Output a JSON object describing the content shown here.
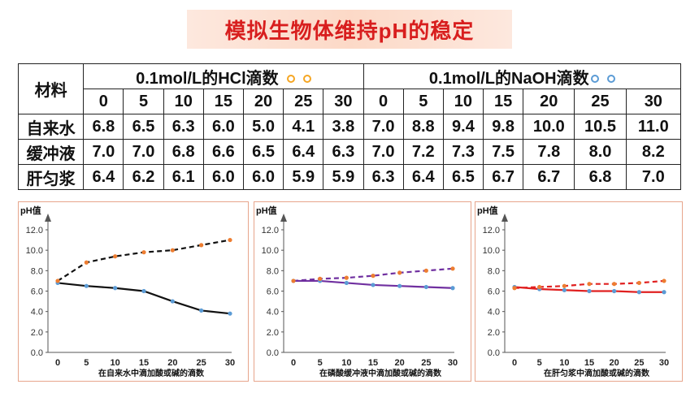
{
  "title": "模拟生物体维持pH的稳定",
  "table": {
    "material_header": "材料",
    "hcl_header": "0.1mol/L的HCl滴数",
    "naoh_header": "0.1mol/L的NaOH滴数",
    "drops": [
      "0",
      "5",
      "10",
      "15",
      "20",
      "25",
      "30"
    ],
    "rows": [
      {
        "name": "自来水",
        "hcl": [
          "6.8",
          "6.5",
          "6.3",
          "6.0",
          "5.0",
          "4.1",
          "3.8"
        ],
        "naoh": [
          "7.0",
          "8.8",
          "9.4",
          "9.8",
          "10.0",
          "10.5",
          "11.0"
        ]
      },
      {
        "name": "缓冲液",
        "hcl": [
          "7.0",
          "7.0",
          "6.8",
          "6.6",
          "6.5",
          "6.4",
          "6.3"
        ],
        "naoh": [
          "7.0",
          "7.2",
          "7.3",
          "7.5",
          "7.8",
          "8.0",
          "8.2"
        ]
      },
      {
        "name": "肝匀浆",
        "hcl": [
          "6.4",
          "6.2",
          "6.1",
          "6.0",
          "6.0",
          "5.9",
          "5.9"
        ],
        "naoh": [
          "6.3",
          "6.4",
          "6.5",
          "6.7",
          "6.7",
          "6.8",
          "7.0"
        ]
      }
    ]
  },
  "colors": {
    "title": "#d81e1e",
    "dot_orange": "#f5a623",
    "dot_blue": "#5b9bd5"
  },
  "chart_data": [
    {
      "type": "line",
      "ylabel": "pH值",
      "xlabel": "在自来水中滴加酸或碱的滴数",
      "x": [
        0,
        5,
        10,
        15,
        20,
        25,
        30
      ],
      "ylim": [
        0,
        12
      ],
      "yticks": [
        "0.0",
        "2.0",
        "4.0",
        "6.0",
        "8.0",
        "10.0",
        "12.0"
      ],
      "grid": false,
      "series": [
        {
          "values": [
            6.8,
            6.5,
            6.3,
            6.0,
            5.0,
            4.1,
            3.8
          ],
          "color": "#111111",
          "dash": false,
          "marker": "#5b9bd5"
        },
        {
          "values": [
            7.0,
            8.8,
            9.4,
            9.8,
            10.0,
            10.5,
            11.0
          ],
          "color": "#111111",
          "dash": true,
          "marker": "#ed7d31"
        }
      ]
    },
    {
      "type": "line",
      "ylabel": "pH值",
      "xlabel": "在磷酸缓冲液中滴加酸或碱的滴数",
      "x": [
        0,
        5,
        10,
        15,
        20,
        25,
        30
      ],
      "ylim": [
        0,
        12
      ],
      "yticks": [
        "0.0",
        "2.0",
        "4.0",
        "6.0",
        "8.0",
        "10.0",
        "12.0"
      ],
      "grid": false,
      "series": [
        {
          "values": [
            7.0,
            7.0,
            6.8,
            6.6,
            6.5,
            6.4,
            6.3
          ],
          "color": "#7030a0",
          "dash": false,
          "marker": "#5b9bd5"
        },
        {
          "values": [
            7.0,
            7.2,
            7.3,
            7.5,
            7.8,
            8.0,
            8.2
          ],
          "color": "#7030a0",
          "dash": true,
          "marker": "#ed7d31"
        }
      ]
    },
    {
      "type": "line",
      "ylabel": "pH值",
      "xlabel": "在肝匀浆中滴加酸或碱的滴数",
      "x": [
        0,
        5,
        10,
        15,
        20,
        25,
        30
      ],
      "ylim": [
        0,
        12
      ],
      "yticks": [
        "0.0",
        "2.0",
        "4.0",
        "6.0",
        "8.0",
        "10.0",
        "12.0"
      ],
      "grid": false,
      "series": [
        {
          "values": [
            6.4,
            6.2,
            6.1,
            6.0,
            6.0,
            5.9,
            5.9
          ],
          "color": "#e02020",
          "dash": false,
          "marker": "#5b9bd5"
        },
        {
          "values": [
            6.3,
            6.4,
            6.5,
            6.7,
            6.7,
            6.8,
            7.0
          ],
          "color": "#e02020",
          "dash": true,
          "marker": "#ed7d31"
        }
      ]
    }
  ]
}
